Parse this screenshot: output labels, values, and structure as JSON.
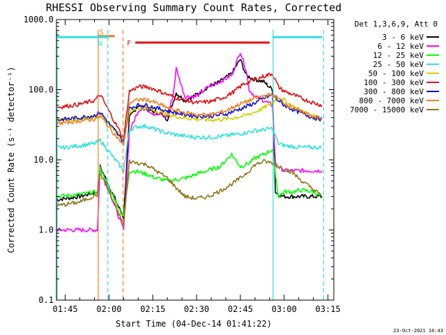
{
  "chart_data": {
    "type": "line",
    "title": "RHESSI Observing Summary Count Rates, Corrected",
    "xlabel": "Start Time (04-Dec-14 01:41:22)",
    "ylabel": "Corrected Count Rate (s⁻¹ detector⁻¹)",
    "yscale": "log",
    "ylim": [
      0.1,
      1000
    ],
    "yticks": [
      0.1,
      1.0,
      10.0,
      100.0,
      1000.0
    ],
    "yticklabels": [
      "0.1",
      "1.0",
      "10.0",
      "100.0",
      "1000.0"
    ],
    "xlim_minutes": [
      102,
      197
    ],
    "xticks_minutes": [
      105,
      120,
      135,
      150,
      165,
      180,
      195
    ],
    "xticklabels": [
      "01:45",
      "02:00",
      "02:15",
      "02:30",
      "02:45",
      "03:00",
      "03:15"
    ],
    "legend_title": "Det 1,3,6,9, Att 0",
    "legend_position": "right",
    "footer_date": "23-Oct-2021 10:43",
    "flags": [
      {
        "label": "S",
        "color": "#f08020",
        "from": 116,
        "to": 122,
        "y": 580
      },
      {
        "label": "N",
        "color": "#30e0e0",
        "from": 102,
        "to": 120,
        "y": 560
      },
      {
        "label": "F",
        "color": "#e01010",
        "from": 129,
        "to": 175,
        "y": 470
      },
      {
        "label": "",
        "color": "#30e0e0",
        "from": 176,
        "to": 193,
        "y": 560
      }
    ],
    "vlines": [
      {
        "t": 102.2,
        "color": "#30e0e0",
        "dash": false
      },
      {
        "t": 116.3,
        "color": "#f08020",
        "dash": false
      },
      {
        "t": 119.6,
        "color": "#30e0e0",
        "dash": true
      },
      {
        "t": 124.8,
        "color": "#f08020",
        "dash": true
      },
      {
        "t": 176.2,
        "color": "#30e0e0",
        "dash": false
      },
      {
        "t": 193.5,
        "color": "#30e0e0",
        "dash": true
      }
    ],
    "series": [
      {
        "name": "3 - 6 keV",
        "color": "#000000",
        "x": [
          102,
          110,
          116,
          117,
          125,
          127,
          130,
          133,
          138,
          140,
          143,
          146,
          150,
          154,
          158,
          162,
          165,
          167,
          170,
          173,
          176,
          177,
          178,
          180,
          183,
          186,
          190,
          193
        ],
        "y": [
          2.7,
          3.0,
          3.5,
          8,
          1.5,
          40,
          60,
          52,
          45,
          38,
          90,
          70,
          85,
          110,
          130,
          170,
          270,
          160,
          140,
          130,
          100,
          3.5,
          3.2,
          3.0,
          3.0,
          3.0,
          3.0,
          3.0
        ]
      },
      {
        "name": "6 - 12 keV",
        "color": "#ff00ff",
        "x": [
          102,
          110,
          116,
          117,
          125,
          127,
          130,
          132,
          135,
          140,
          142,
          143,
          146,
          150,
          154,
          158,
          162,
          165,
          167,
          168,
          170,
          173,
          176,
          177,
          178,
          180,
          183,
          186,
          190,
          193
        ],
        "y": [
          1.0,
          1.0,
          1.0,
          8,
          1.0,
          25,
          50,
          58,
          46,
          42,
          85,
          200,
          80,
          80,
          110,
          130,
          160,
          350,
          190,
          100,
          80,
          70,
          60,
          9,
          8,
          7,
          7,
          7,
          7,
          7
        ]
      },
      {
        "name": "12 - 25 keV",
        "color": "#00ff00",
        "x": [
          102,
          110,
          116,
          117,
          125,
          127,
          130,
          133,
          136,
          140,
          143,
          147,
          150,
          155,
          158,
          162,
          165,
          168,
          170,
          173,
          176,
          178,
          180,
          183,
          186,
          190,
          193
        ],
        "y": [
          3.0,
          3.2,
          3.5,
          7.5,
          1.5,
          7.0,
          6.8,
          6.2,
          5.5,
          5.0,
          5.2,
          5.6,
          6.3,
          7.3,
          8.0,
          12,
          8.0,
          9.0,
          10.5,
          12,
          14,
          3.0,
          3.5,
          3.5,
          3.7,
          3.5,
          3.0
        ]
      },
      {
        "name": "25 - 50 keV",
        "color": "#30e0e0",
        "x": [
          102,
          105,
          110,
          115,
          117,
          125,
          127,
          130,
          133,
          136,
          140,
          145,
          150,
          155,
          160,
          163,
          166,
          170,
          173,
          176,
          178,
          180,
          183,
          186,
          190,
          193
        ],
        "y": [
          15,
          15,
          16,
          17,
          19,
          7,
          27,
          30,
          30,
          27,
          24,
          22,
          21,
          21,
          22,
          23,
          24,
          26,
          27,
          28,
          17,
          16,
          15.5,
          15,
          15,
          15
        ]
      },
      {
        "name": "50 - 100 keV",
        "color": "#d0d000",
        "x": [
          102,
          110,
          117,
          125,
          127,
          130,
          133,
          136,
          140,
          145,
          150,
          155,
          160,
          163,
          166,
          170,
          173,
          176,
          178,
          180,
          183,
          186,
          190,
          193
        ],
        "y": [
          38,
          38,
          42,
          20,
          48,
          55,
          55,
          50,
          44,
          40,
          38,
          37,
          38,
          40,
          42,
          48,
          55,
          65,
          80,
          70,
          58,
          50,
          42,
          38
        ]
      },
      {
        "name": "100 - 300 keV",
        "color": "#e01010",
        "x": [
          102,
          105,
          110,
          115,
          117,
          125,
          127,
          130,
          133,
          136,
          140,
          145,
          150,
          155,
          160,
          163,
          166,
          170,
          173,
          176,
          178,
          180,
          183,
          186,
          190,
          193
        ],
        "y": [
          56,
          58,
          62,
          70,
          85,
          20,
          95,
          110,
          110,
          100,
          85,
          72,
          65,
          68,
          80,
          95,
          120,
          140,
          155,
          170,
          110,
          95,
          85,
          75,
          65,
          60
        ]
      },
      {
        "name": "300 - 800 keV",
        "color": "#1010d0",
        "x": [
          102,
          105,
          110,
          115,
          117,
          125,
          127,
          130,
          133,
          136,
          140,
          145,
          150,
          155,
          160,
          163,
          166,
          170,
          173,
          176,
          178,
          180,
          183,
          186,
          190,
          193
        ],
        "y": [
          37,
          38,
          40,
          43,
          48,
          18,
          55,
          60,
          60,
          55,
          50,
          45,
          42,
          42,
          45,
          50,
          55,
          65,
          75,
          85,
          70,
          60,
          52,
          46,
          40,
          38
        ]
      },
      {
        "name": "800 - 7000 keV",
        "color": "#f08020",
        "x": [
          102,
          105,
          110,
          115,
          117,
          125,
          127,
          130,
          133,
          136,
          140,
          145,
          150,
          155,
          160,
          163,
          166,
          170,
          173,
          176,
          178,
          180,
          183,
          186,
          190,
          193
        ],
        "y": [
          33,
          34,
          36,
          38,
          42,
          16,
          65,
          72,
          72,
          65,
          55,
          48,
          44,
          44,
          50,
          58,
          65,
          75,
          82,
          85,
          75,
          65,
          55,
          48,
          42,
          38
        ]
      },
      {
        "name": "7000 - 15000 keV",
        "color": "#8c7a1a",
        "x": [
          102,
          110,
          116,
          117,
          125,
          127,
          130,
          133,
          136,
          140,
          143,
          146,
          150,
          154,
          158,
          162,
          165,
          168,
          170,
          173,
          176,
          178,
          180,
          183,
          186,
          190,
          193
        ],
        "y": [
          2.2,
          2.5,
          3.2,
          6.5,
          1.2,
          9.5,
          9.0,
          8.5,
          7.0,
          5.5,
          4.0,
          3.0,
          2.8,
          3.0,
          3.6,
          4.5,
          5.5,
          7.0,
          8.5,
          9.5,
          9.0,
          8.0,
          7.5,
          6.5,
          5.0,
          3.8,
          3.0
        ]
      }
    ]
  }
}
